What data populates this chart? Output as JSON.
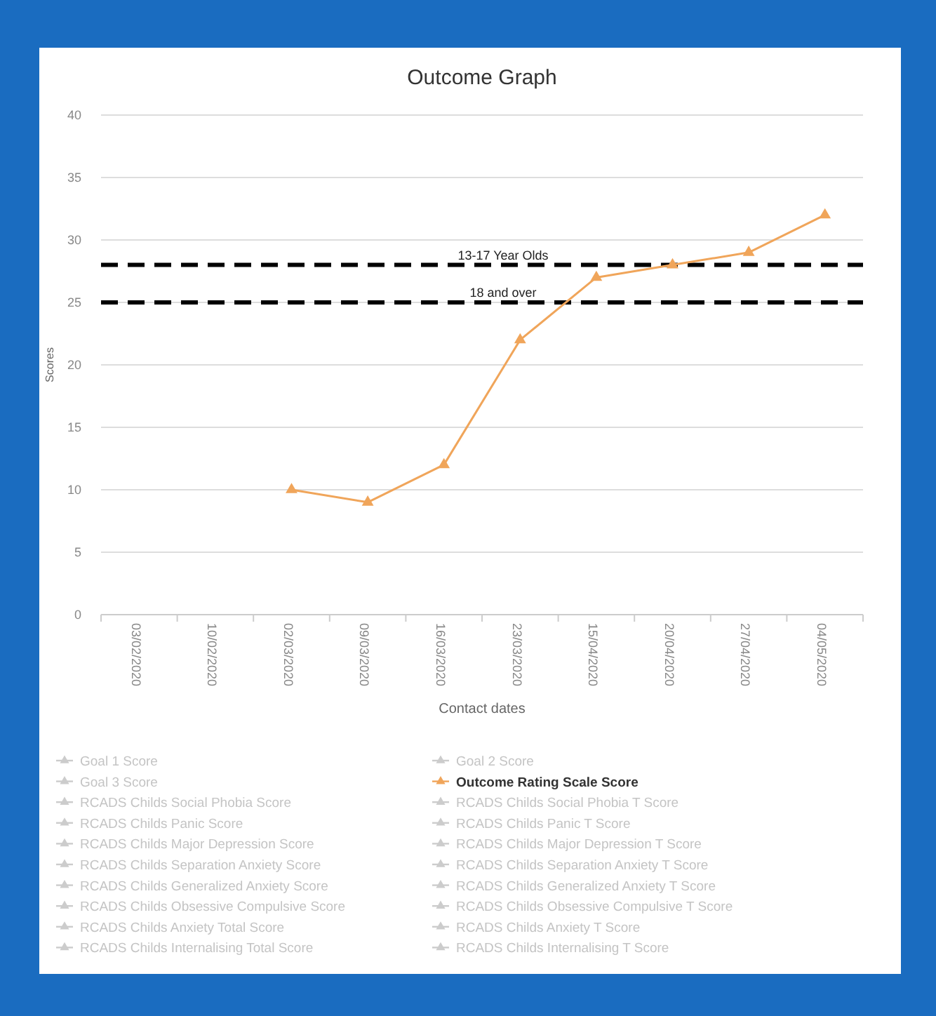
{
  "chart_data": {
    "type": "line",
    "title": "Outcome Graph",
    "xlabel": "Contact dates",
    "ylabel": "Scores",
    "categories": [
      "03/02/2020",
      "10/02/2020",
      "02/03/2020",
      "09/03/2020",
      "16/03/2020",
      "23/03/2020",
      "15/04/2020",
      "20/04/2020",
      "27/04/2020",
      "04/05/2020"
    ],
    "series": [
      {
        "name": "Goal 1 Score",
        "color": "#cccccc",
        "values": [
          null,
          null,
          null,
          null,
          null,
          null,
          null,
          null,
          null,
          null
        ]
      },
      {
        "name": "Goal 2 Score",
        "color": "#cccccc",
        "values": [
          null,
          null,
          null,
          null,
          null,
          null,
          null,
          null,
          null,
          null
        ]
      },
      {
        "name": "Goal 3 Score",
        "color": "#cccccc",
        "values": [
          null,
          null,
          null,
          null,
          null,
          null,
          null,
          null,
          null,
          null
        ]
      },
      {
        "name": "Outcome Rating Scale Score",
        "color": "#f0a55a",
        "values": [
          null,
          null,
          10,
          9,
          12,
          22,
          27,
          28,
          29,
          32
        ]
      },
      {
        "name": "RCADS Childs Social Phobia Score",
        "color": "#cccccc",
        "values": [
          null,
          null,
          null,
          null,
          null,
          null,
          null,
          null,
          null,
          null
        ]
      },
      {
        "name": "RCADS Childs Social Phobia T Score",
        "color": "#cccccc",
        "values": [
          null,
          null,
          null,
          null,
          null,
          null,
          null,
          null,
          null,
          null
        ]
      },
      {
        "name": "RCADS Childs Panic Score",
        "color": "#cccccc",
        "values": [
          null,
          null,
          null,
          null,
          null,
          null,
          null,
          null,
          null,
          null
        ]
      },
      {
        "name": "RCADS Childs Panic T Score",
        "color": "#cccccc",
        "values": [
          null,
          null,
          null,
          null,
          null,
          null,
          null,
          null,
          null,
          null
        ]
      },
      {
        "name": "RCADS Childs Major Depression Score",
        "color": "#cccccc",
        "values": [
          null,
          null,
          null,
          null,
          null,
          null,
          null,
          null,
          null,
          null
        ]
      },
      {
        "name": "RCADS Childs Major Depression T Score",
        "color": "#cccccc",
        "values": [
          null,
          null,
          null,
          null,
          null,
          null,
          null,
          null,
          null,
          null
        ]
      },
      {
        "name": "RCADS Childs Separation Anxiety Score",
        "color": "#cccccc",
        "values": [
          null,
          null,
          null,
          null,
          null,
          null,
          null,
          null,
          null,
          null
        ]
      },
      {
        "name": "RCADS Childs Separation Anxiety T Score",
        "color": "#cccccc",
        "values": [
          null,
          null,
          null,
          null,
          null,
          null,
          null,
          null,
          null,
          null
        ]
      },
      {
        "name": "RCADS Childs Generalized Anxiety Score",
        "color": "#cccccc",
        "values": [
          null,
          null,
          null,
          null,
          null,
          null,
          null,
          null,
          null,
          null
        ]
      },
      {
        "name": "RCADS Childs Generalized Anxiety T Score",
        "color": "#cccccc",
        "values": [
          null,
          null,
          null,
          null,
          null,
          null,
          null,
          null,
          null,
          null
        ]
      },
      {
        "name": "RCADS Childs Obsessive Compulsive Score",
        "color": "#cccccc",
        "values": [
          null,
          null,
          null,
          null,
          null,
          null,
          null,
          null,
          null,
          null
        ]
      },
      {
        "name": "RCADS Childs Obsessive Compulsive T Score",
        "color": "#cccccc",
        "values": [
          null,
          null,
          null,
          null,
          null,
          null,
          null,
          null,
          null,
          null
        ]
      },
      {
        "name": "RCADS Childs Anxiety Total Score",
        "color": "#cccccc",
        "values": [
          null,
          null,
          null,
          null,
          null,
          null,
          null,
          null,
          null,
          null
        ]
      },
      {
        "name": "RCADS Childs Anxiety T Score",
        "color": "#cccccc",
        "values": [
          null,
          null,
          null,
          null,
          null,
          null,
          null,
          null,
          null,
          null
        ]
      },
      {
        "name": "RCADS Childs Internalising Total Score",
        "color": "#cccccc",
        "values": [
          null,
          null,
          null,
          null,
          null,
          null,
          null,
          null,
          null,
          null
        ]
      },
      {
        "name": "RCADS Childs Internalising T Score",
        "color": "#cccccc",
        "values": [
          null,
          null,
          null,
          null,
          null,
          null,
          null,
          null,
          null,
          null
        ]
      }
    ],
    "ylim": [
      0,
      40
    ],
    "yticks": [
      0,
      5,
      10,
      15,
      20,
      25,
      30,
      35,
      40
    ],
    "ref_lines": [
      {
        "axis": "y",
        "value": 28,
        "label": "13-17 Year Olds",
        "color": "#000000",
        "line_style": "dashed"
      },
      {
        "axis": "y",
        "value": 25,
        "label": "18 and over",
        "color": "#000000",
        "line_style": "dashed"
      }
    ],
    "grid": "y",
    "legend": "bottom",
    "marker": "triangle",
    "line_style": "solid"
  }
}
